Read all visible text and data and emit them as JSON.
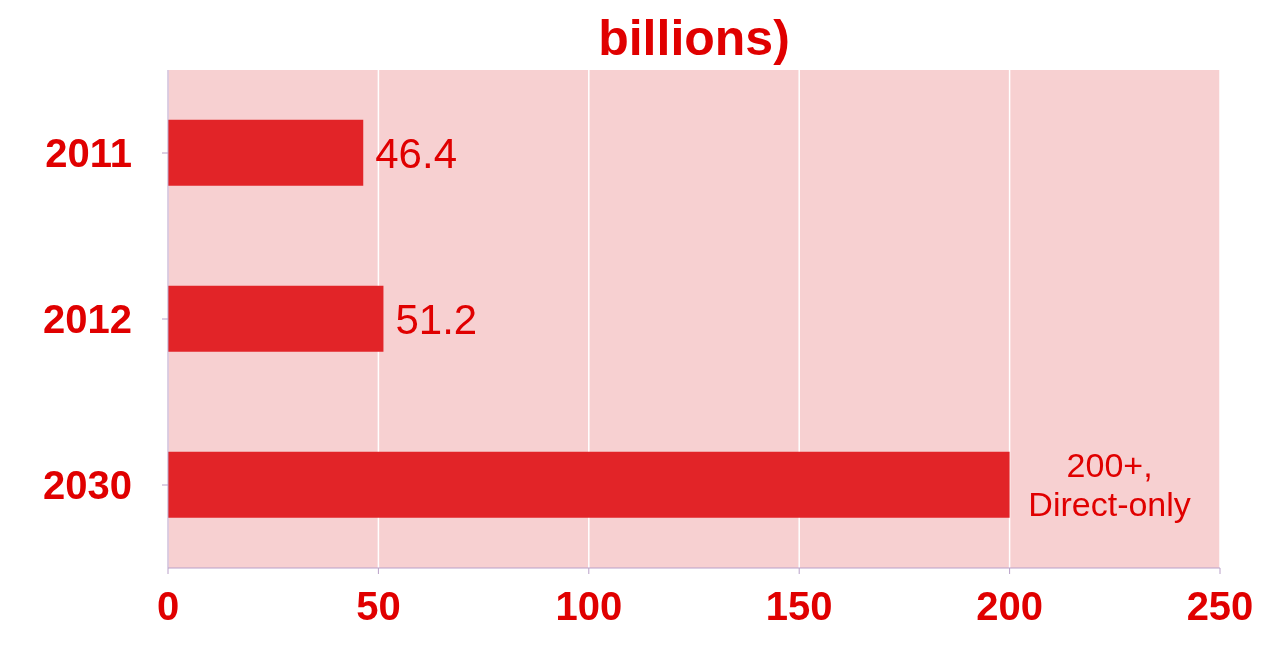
{
  "chart_data": {
    "type": "bar",
    "orientation": "horizontal",
    "title": "billions)",
    "categories": [
      "2011",
      "2012",
      "2030"
    ],
    "values": [
      46.4,
      51.2,
      200
    ],
    "color": "#e22428",
    "value_labels": [
      "46.4",
      "51.2",
      "200+,\nDirect-only"
    ],
    "xlim": [
      0,
      250
    ],
    "xticks": [
      0,
      50,
      100,
      150,
      200,
      250
    ],
    "grid": "x"
  }
}
